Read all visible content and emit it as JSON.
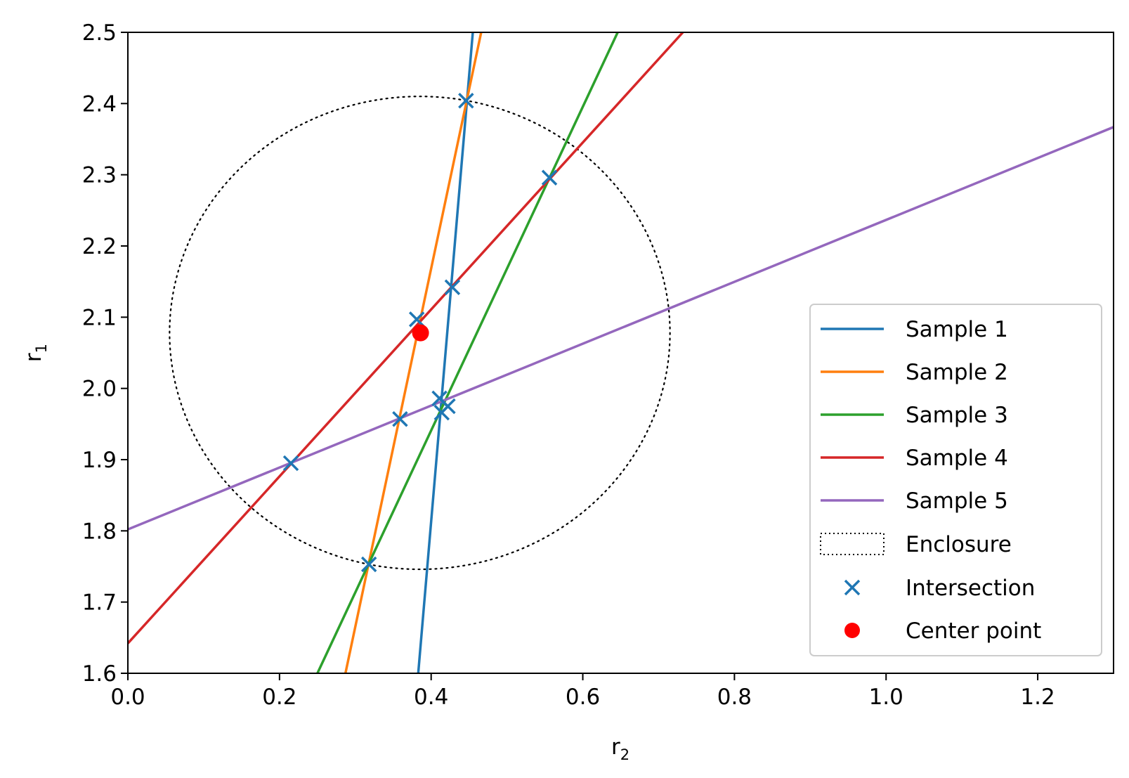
{
  "chart_data": {
    "type": "line",
    "xlabel": "r",
    "xlabel_sub": "2",
    "ylabel": "r",
    "ylabel_sub": "1",
    "xlim": [
      0.0,
      1.3
    ],
    "ylim": [
      1.6,
      2.5
    ],
    "xticks": [
      0.0,
      0.2,
      0.4,
      0.6,
      0.8,
      1.0,
      1.2
    ],
    "xtick_labels": [
      "0.0",
      "0.2",
      "0.4",
      "0.6",
      "0.8",
      "1.0",
      "1.2"
    ],
    "yticks": [
      1.6,
      1.7,
      1.8,
      1.9,
      2.0,
      2.1,
      2.2,
      2.3,
      2.4,
      2.5
    ],
    "ytick_labels": [
      "1.6",
      "1.7",
      "1.8",
      "1.9",
      "2.0",
      "2.1",
      "2.2",
      "2.3",
      "2.4",
      "2.5"
    ],
    "grid": false,
    "legend_position": "lower-right",
    "series": [
      {
        "name": "Sample 1",
        "color": "#1f77b4",
        "points": [
          [
            0.383,
            1.6
          ],
          [
            0.455,
            2.5
          ]
        ]
      },
      {
        "name": "Sample 2",
        "color": "#ff7f0e",
        "points": [
          [
            0.287,
            1.6
          ],
          [
            0.466,
            2.5
          ]
        ]
      },
      {
        "name": "Sample 3",
        "color": "#2ca02c",
        "points": [
          [
            0.25,
            1.6
          ],
          [
            0.646,
            2.5
          ]
        ]
      },
      {
        "name": "Sample 4",
        "color": "#d62728",
        "points": [
          [
            0.0,
            1.642
          ],
          [
            0.732,
            2.5
          ]
        ]
      },
      {
        "name": "Sample 5",
        "color": "#9467bd",
        "points": [
          [
            0.0,
            1.802
          ],
          [
            1.3,
            2.367
          ]
        ]
      }
    ],
    "enclosure": {
      "name": "Enclosure",
      "center": [
        0.385,
        2.078
      ],
      "radius_x": 0.33,
      "radius_y": 0.332,
      "color": "#000000"
    },
    "intersections": {
      "name": "Intersection",
      "color": "#1f77b4",
      "points": [
        [
          0.446,
          2.404
        ],
        [
          0.556,
          2.296
        ],
        [
          0.428,
          2.142
        ],
        [
          0.381,
          2.097
        ],
        [
          0.411,
          1.986
        ],
        [
          0.422,
          1.975
        ],
        [
          0.359,
          1.957
        ],
        [
          0.414,
          1.966
        ],
        [
          0.215,
          1.895
        ],
        [
          0.318,
          1.753
        ]
      ]
    },
    "center_point": {
      "name": "Center point",
      "color": "#ff0000",
      "x": 0.386,
      "y": 2.078
    }
  }
}
